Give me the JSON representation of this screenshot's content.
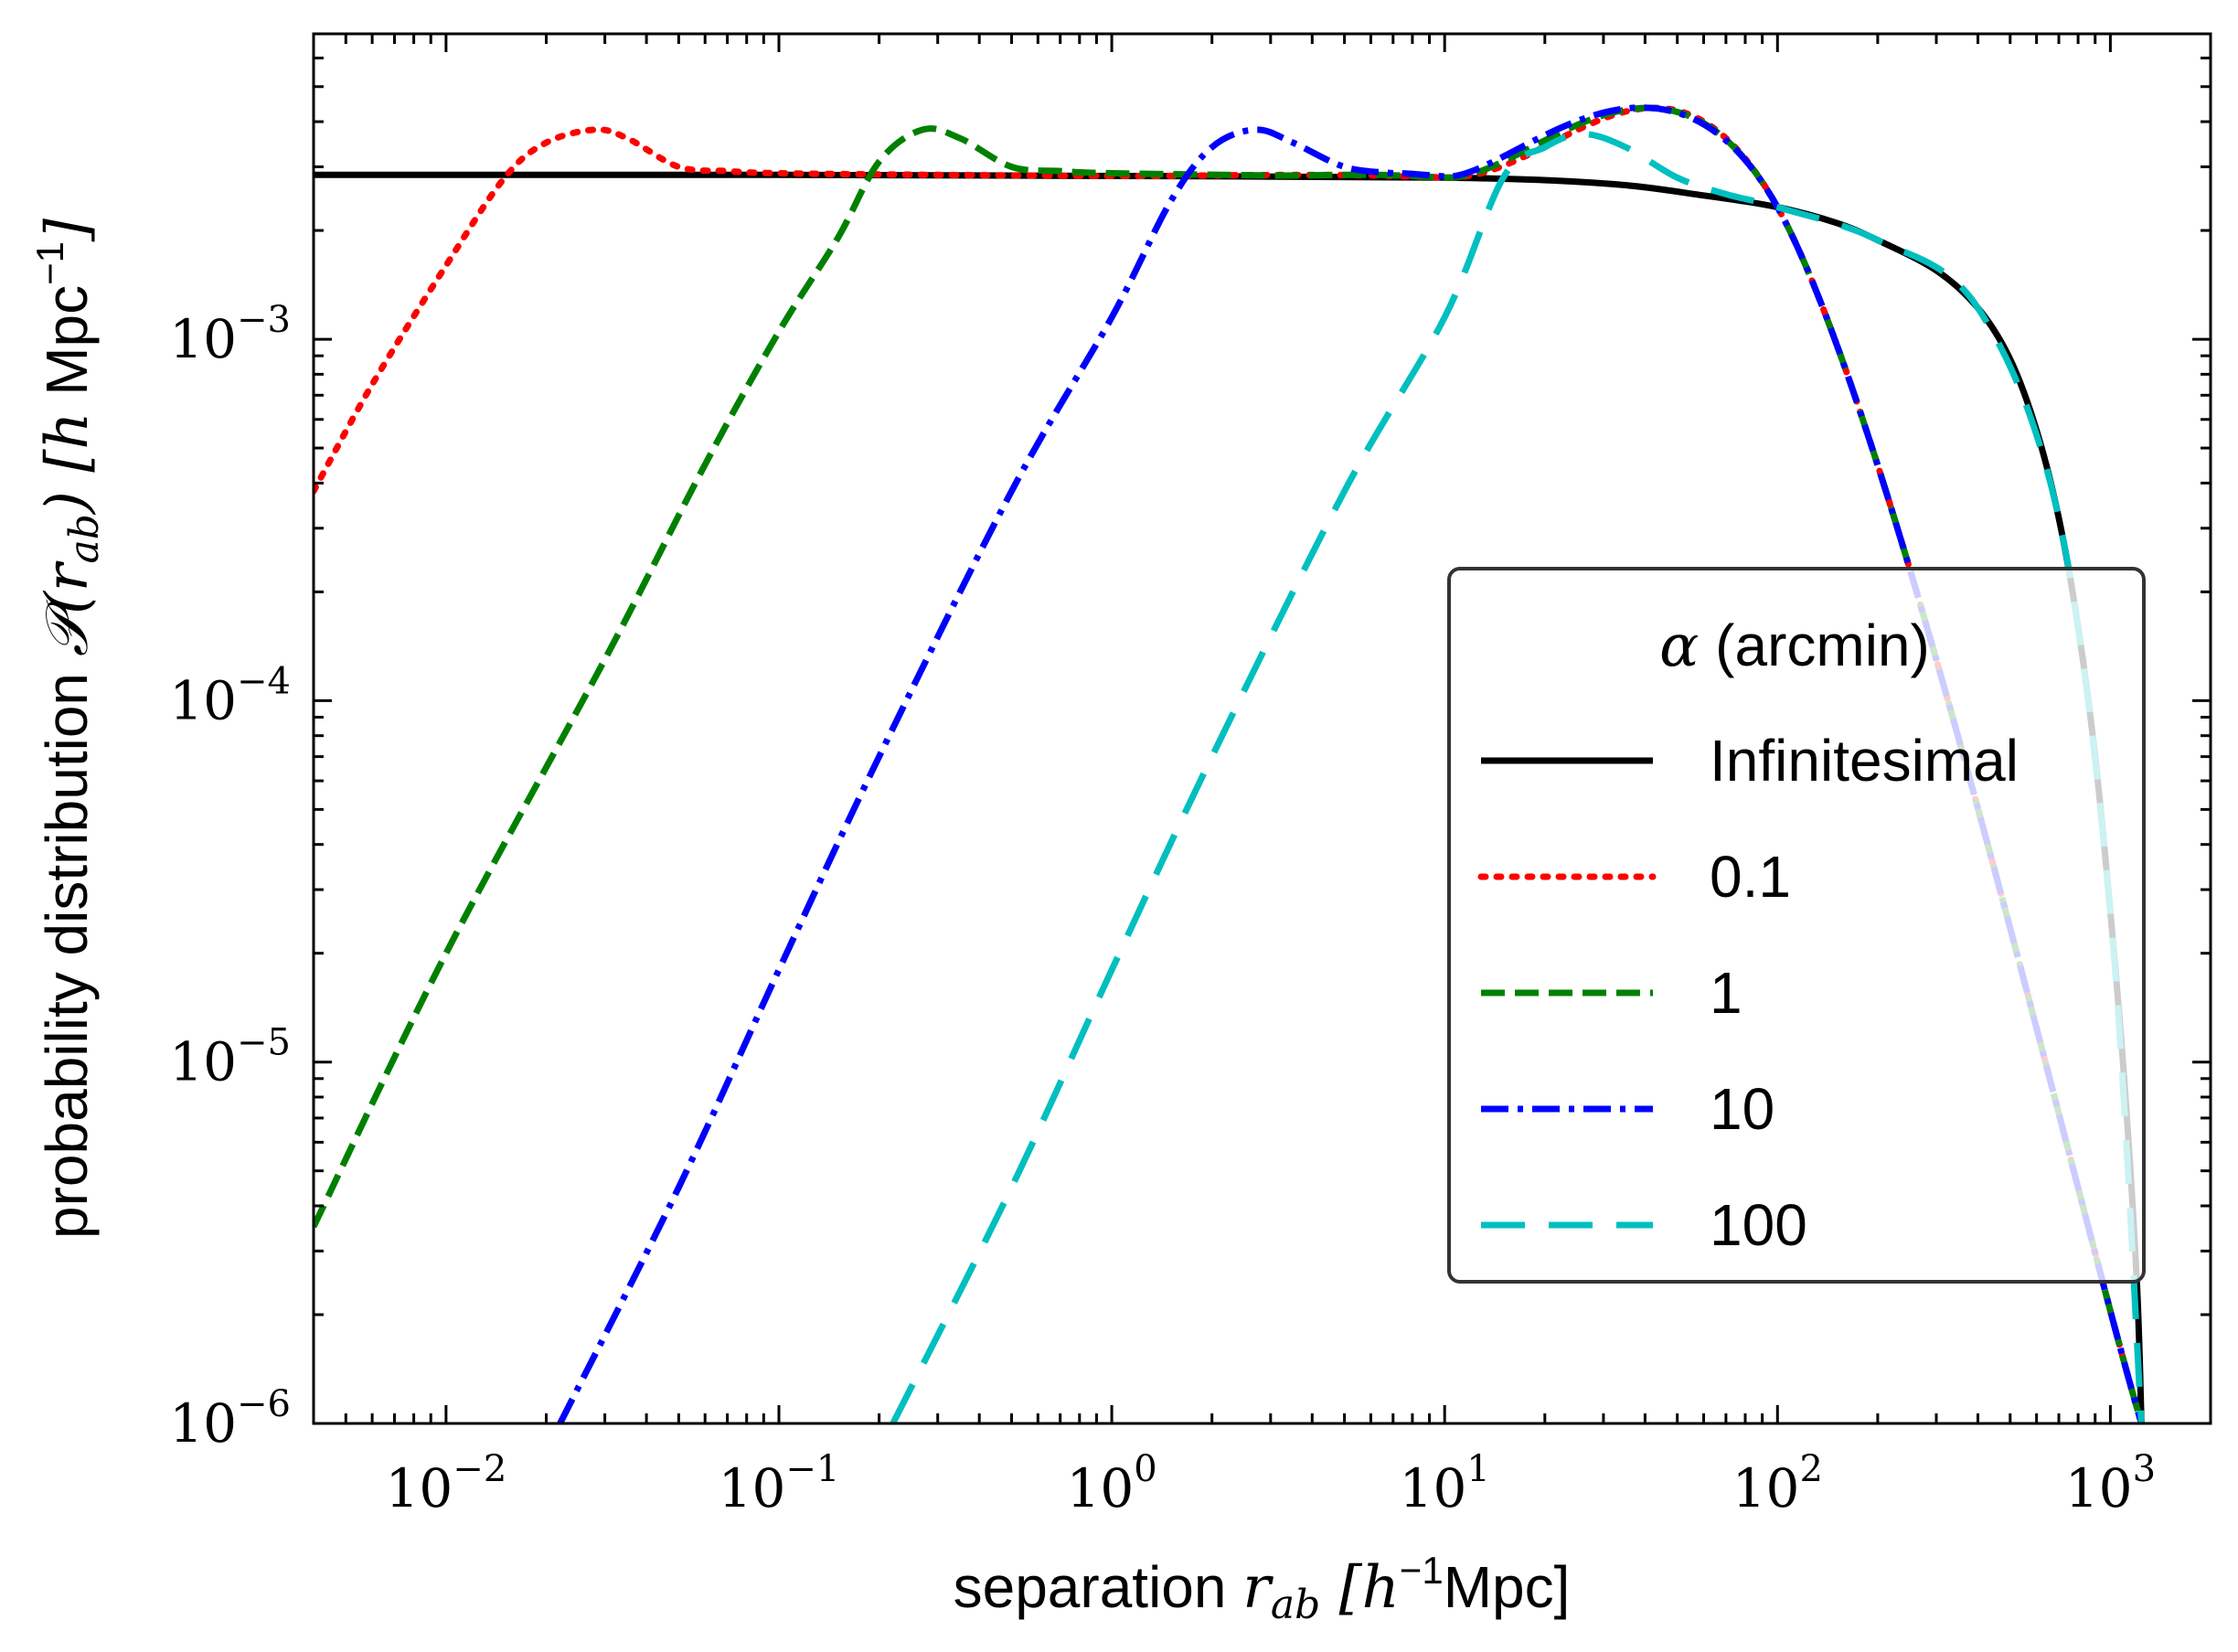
{
  "chart_data": {
    "type": "line",
    "xscale": "log",
    "yscale": "log",
    "xlim": [
      0.004,
      2000
    ],
    "ylim": [
      1e-06,
      0.007
    ],
    "xlabel": {
      "prefix": "separation ",
      "var": "r",
      "sub": "ab",
      "unit_open": " [",
      "unit_base": "h",
      "unit_exp": "−1",
      "unit_rest": "Mpc]"
    },
    "ylabel": {
      "prefix": "probability distribution ",
      "var": "𝒫(r",
      "sub": "ab",
      "close": ")",
      "unit_open": " [",
      "unit_h": "h",
      "unit_rest": " Mpc",
      "unit_exp": "−1",
      "unit_close": "]"
    },
    "x_ticks": [
      {
        "value": 0.01,
        "base": "10",
        "exp": "−2"
      },
      {
        "value": 0.1,
        "base": "10",
        "exp": "−1"
      },
      {
        "value": 1,
        "base": "10",
        "exp": "0"
      },
      {
        "value": 10,
        "base": "10",
        "exp": "1"
      },
      {
        "value": 100,
        "base": "10",
        "exp": "2"
      },
      {
        "value": 1000,
        "base": "10",
        "exp": "3"
      }
    ],
    "y_ticks": [
      {
        "value": 1e-06,
        "base": "10",
        "exp": "−6"
      },
      {
        "value": 1e-05,
        "base": "10",
        "exp": "−5"
      },
      {
        "value": 0.0001,
        "base": "10",
        "exp": "−4"
      },
      {
        "value": 0.001,
        "base": "10",
        "exp": "−3"
      }
    ],
    "legend": {
      "title_var": "α",
      "title_rest": " (arcmin)",
      "position": "center-right"
    },
    "series": [
      {
        "name": "Infinitesimal",
        "color": "#000000",
        "dash": "solid",
        "points": [
          [
            0.004,
            0.00285
          ],
          [
            0.1,
            0.00285
          ],
          [
            1,
            0.00283
          ],
          [
            10,
            0.0028
          ],
          [
            30,
            0.0027
          ],
          [
            60,
            0.0025
          ],
          [
            100,
            0.00232
          ],
          [
            150,
            0.0021
          ],
          [
            200,
            0.00188
          ],
          [
            300,
            0.00155
          ],
          [
            400,
            0.00122
          ],
          [
            500,
            0.00088
          ],
          [
            600,
            0.00056
          ],
          [
            700,
            0.00032
          ],
          [
            800,
            0.00016
          ],
          [
            900,
            7e-05
          ],
          [
            1000,
            2.6e-05
          ],
          [
            1100,
            9e-06
          ],
          [
            1200,
            2.5e-06
          ],
          [
            1240,
            1e-06
          ]
        ]
      },
      {
        "name": "0.1",
        "color": "#ff0000",
        "dash": "dotted",
        "points": [
          [
            0.004,
            0.00038
          ],
          [
            0.006,
            0.00075
          ],
          [
            0.01,
            0.0016
          ],
          [
            0.015,
            0.0028
          ],
          [
            0.02,
            0.0035
          ],
          [
            0.028,
            0.0038
          ],
          [
            0.035,
            0.0036
          ],
          [
            0.05,
            0.003
          ],
          [
            0.07,
            0.00292
          ],
          [
            0.1,
            0.00288
          ],
          [
            0.3,
            0.00285
          ],
          [
            1,
            0.00283
          ],
          [
            10,
            0.0028
          ],
          [
            100,
            0.00232
          ],
          [
            1240,
            1e-06
          ]
        ]
      },
      {
        "name": "1",
        "color": "#008000",
        "dash": "dashed",
        "points": [
          [
            0.004,
            3.5e-06
          ],
          [
            0.01,
            2e-05
          ],
          [
            0.03,
            0.00013
          ],
          [
            0.06,
            0.00045
          ],
          [
            0.1,
            0.00105
          ],
          [
            0.15,
            0.0019
          ],
          [
            0.2,
            0.0031
          ],
          [
            0.27,
            0.0038
          ],
          [
            0.35,
            0.0036
          ],
          [
            0.5,
            0.003
          ],
          [
            0.7,
            0.00292
          ],
          [
            1,
            0.00288
          ],
          [
            3,
            0.00284
          ],
          [
            10,
            0.0028
          ],
          [
            100,
            0.00232
          ],
          [
            1240,
            1e-06
          ]
        ]
      },
      {
        "name": "10",
        "color": "#0000ff",
        "dash": "dashdot",
        "points": [
          [
            0.022,
            1e-06
          ],
          [
            0.05,
            4.5e-06
          ],
          [
            0.1,
            1.8e-05
          ],
          [
            0.2,
            7e-05
          ],
          [
            0.5,
            0.00038
          ],
          [
            1,
            0.00115
          ],
          [
            1.5,
            0.0024
          ],
          [
            2,
            0.0034
          ],
          [
            2.7,
            0.0038
          ],
          [
            3.5,
            0.0035
          ],
          [
            5,
            0.003
          ],
          [
            7,
            0.00288
          ],
          [
            10,
            0.00282
          ],
          [
            100,
            0.00232
          ],
          [
            1240,
            1e-06
          ]
        ]
      },
      {
        "name": "100",
        "color": "#00bfbf",
        "dash": "longdash",
        "points": [
          [
            0.22,
            1e-06
          ],
          [
            0.5,
            4.5e-06
          ],
          [
            1,
            1.8e-05
          ],
          [
            2,
            7e-05
          ],
          [
            5,
            0.00038
          ],
          [
            10,
            0.00115
          ],
          [
            15,
            0.0028
          ],
          [
            20,
            0.0034
          ],
          [
            26,
            0.0037
          ],
          [
            35,
            0.0034
          ],
          [
            50,
            0.0028
          ],
          [
            70,
            0.00252
          ],
          [
            100,
            0.00232
          ],
          [
            200,
            0.00188
          ],
          [
            400,
            0.00122
          ],
          [
            700,
            0.00032
          ],
          [
            1000,
            2.6e-05
          ],
          [
            1240,
            1e-06
          ]
        ]
      }
    ]
  }
}
